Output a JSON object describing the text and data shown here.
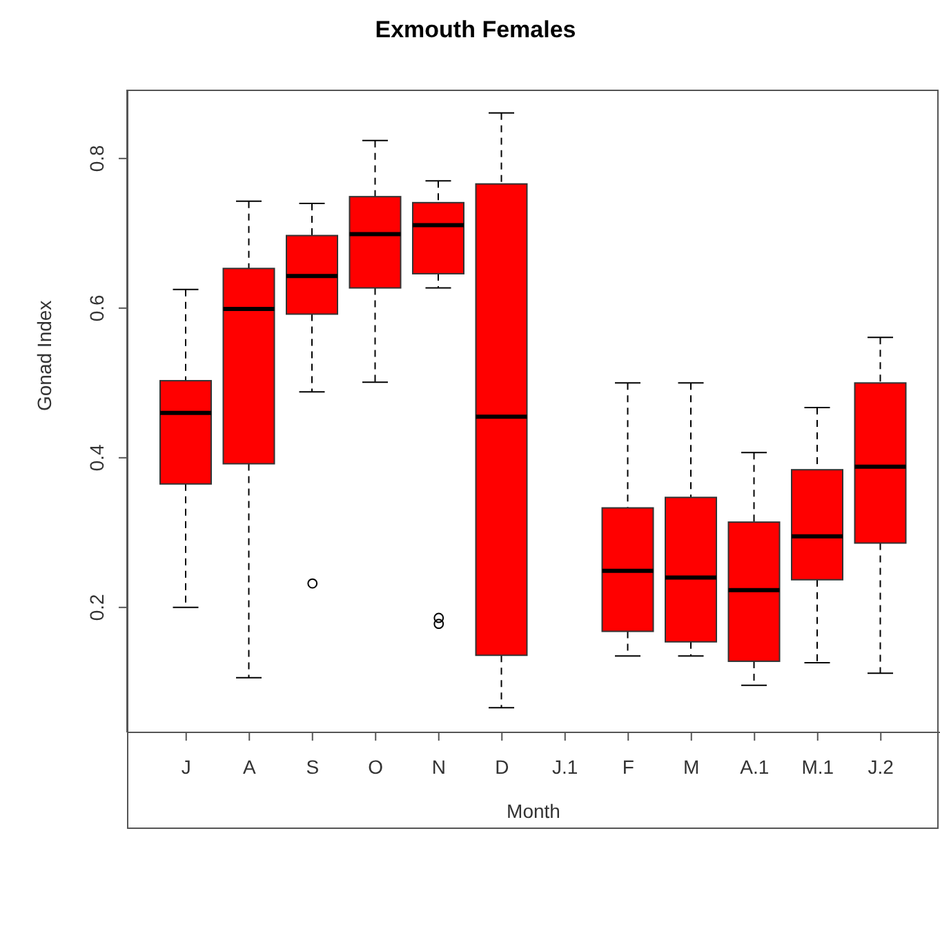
{
  "chart_data": {
    "type": "box",
    "title": "Exmouth Females",
    "xlabel": "Month",
    "ylabel": "Gonad Index",
    "categories": [
      "J",
      "A",
      "S",
      "O",
      "N",
      "D",
      "J.1",
      "F",
      "M",
      "A.1",
      "M.1",
      "J.2"
    ],
    "color": "#ff0000",
    "boxes": [
      {
        "low": 0.2,
        "q1": 0.365,
        "median": 0.46,
        "q3": 0.503,
        "high": 0.625
      },
      {
        "low": 0.106,
        "q1": 0.392,
        "median": 0.599,
        "q3": 0.653,
        "high": 0.743
      },
      {
        "low": 0.488,
        "q1": 0.592,
        "median": 0.643,
        "q3": 0.697,
        "high": 0.74,
        "outliers": [
          0.232
        ]
      },
      {
        "low": 0.501,
        "q1": 0.627,
        "median": 0.699,
        "q3": 0.749,
        "high": 0.824
      },
      {
        "low": 0.627,
        "q1": 0.646,
        "median": 0.711,
        "q3": 0.741,
        "high": 0.77,
        "outliers": [
          0.178,
          0.186
        ]
      },
      {
        "low": 0.066,
        "q1": 0.136,
        "median": 0.455,
        "q3": 0.766,
        "high": 0.861
      },
      null,
      {
        "low": 0.135,
        "q1": 0.168,
        "median": 0.249,
        "q3": 0.333,
        "high": 0.5
      },
      {
        "low": 0.135,
        "q1": 0.154,
        "median": 0.24,
        "q3": 0.347,
        "high": 0.5
      },
      {
        "low": 0.096,
        "q1": 0.128,
        "median": 0.223,
        "q3": 0.314,
        "high": 0.407
      },
      {
        "low": 0.126,
        "q1": 0.237,
        "median": 0.295,
        "q3": 0.384,
        "high": 0.467
      },
      {
        "low": 0.112,
        "q1": 0.286,
        "median": 0.388,
        "q3": 0.5,
        "high": 0.561
      }
    ],
    "ylim": [
      0.033,
      0.892
    ],
    "yticks": [
      0.2,
      0.4,
      0.6,
      0.8
    ]
  }
}
